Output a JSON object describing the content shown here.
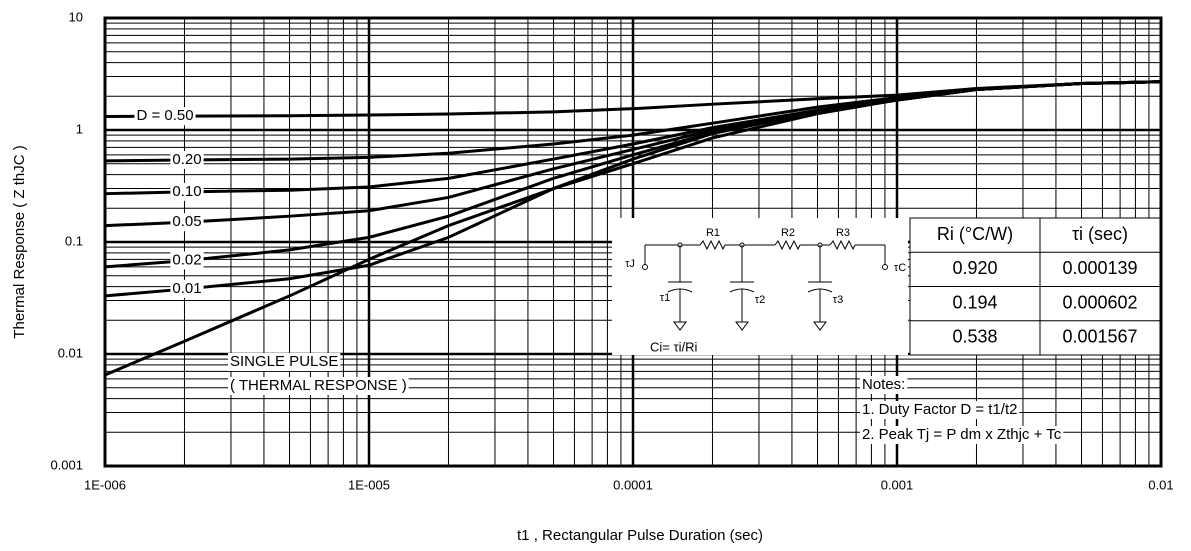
{
  "chart_data": {
    "type": "line",
    "x_label": "t1 , Rectangular Pulse Duration (sec)",
    "y_label": "Thermal Response ( Z thJC )",
    "log_x": true,
    "log_y": true,
    "grid": true,
    "minor_grid": true,
    "xlim": [
      1e-06,
      0.01
    ],
    "ylim": [
      0.001,
      10
    ],
    "xticks": [
      {
        "value": 1e-06,
        "label": "1E-006"
      },
      {
        "value": 1e-05,
        "label": "1E-005"
      },
      0.0001,
      0.001,
      0.01
    ],
    "yticks": [
      0.001,
      0.01,
      0.1,
      1,
      10
    ],
    "x": [
      1e-06,
      2e-06,
      5e-06,
      1e-05,
      2e-05,
      5e-05,
      0.0001,
      0.0002,
      0.0005,
      0.001,
      0.002,
      0.005,
      0.01
    ],
    "series": [
      {
        "name": "D = 0.50",
        "color": "#000000",
        "values": [
          1.32,
          1.33,
          1.34,
          1.36,
          1.39,
          1.45,
          1.55,
          1.7,
          1.9,
          2.05,
          2.35,
          2.6,
          2.7
        ]
      },
      {
        "name": "0.20",
        "color": "#000000",
        "values": [
          0.53,
          0.54,
          0.55,
          0.57,
          0.62,
          0.75,
          0.9,
          1.15,
          1.6,
          1.95,
          2.3,
          2.6,
          2.7
        ]
      },
      {
        "name": "0.10",
        "color": "#000000",
        "values": [
          0.27,
          0.28,
          0.29,
          0.31,
          0.37,
          0.55,
          0.75,
          1.05,
          1.5,
          1.9,
          2.3,
          2.6,
          2.7
        ]
      },
      {
        "name": "0.05",
        "color": "#000000",
        "values": [
          0.14,
          0.15,
          0.17,
          0.19,
          0.25,
          0.45,
          0.67,
          1.0,
          1.45,
          1.85,
          2.3,
          2.6,
          2.7
        ]
      },
      {
        "name": "0.02",
        "color": "#000000",
        "values": [
          0.06,
          0.068,
          0.085,
          0.11,
          0.17,
          0.37,
          0.6,
          0.95,
          1.45,
          1.85,
          2.3,
          2.6,
          2.7
        ]
      },
      {
        "name": "0.01",
        "color": "#000000",
        "values": [
          0.033,
          0.038,
          0.047,
          0.062,
          0.11,
          0.3,
          0.55,
          0.93,
          1.45,
          1.85,
          2.3,
          2.6,
          2.7
        ]
      },
      {
        "name": "SINGLE PULSE",
        "color": "#000000",
        "values": [
          0.0065,
          0.013,
          0.033,
          0.07,
          0.14,
          0.3,
          0.5,
          0.85,
          1.4,
          1.85,
          2.3,
          2.6,
          2.7
        ]
      }
    ],
    "annotation": "( THERMAL RESPONSE )",
    "circuit": {
      "tau_j": "τJ",
      "tau_c": "τC",
      "r1": "R1",
      "r2": "R2",
      "r3": "R3",
      "tau1": "τ1",
      "tau2": "τ2",
      "tau3": "τ3",
      "formula": "Ci= τi/Ri"
    },
    "table": {
      "header": [
        "Ri (°C/W)",
        "τi (sec)"
      ],
      "rows": [
        [
          "0.920",
          "0.000139"
        ],
        [
          "0.194",
          "0.000602"
        ],
        [
          "0.538",
          "0.001567"
        ]
      ]
    },
    "notes": [
      "Notes:",
      "1. Duty Factor D = t1/t2",
      "2. Peak Tj = P dm x Zthjc + Tc"
    ]
  }
}
